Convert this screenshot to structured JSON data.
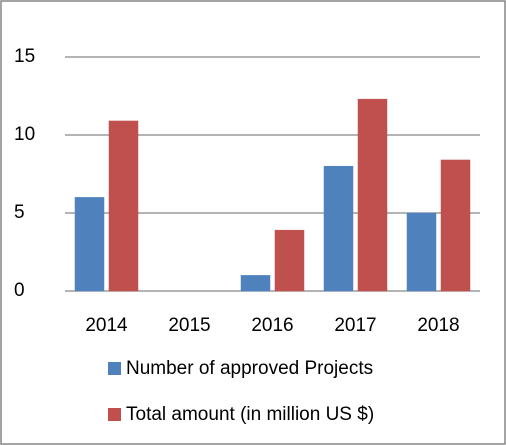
{
  "chart_data": {
    "type": "bar",
    "categories": [
      "2014",
      "2015",
      "2016",
      "2017",
      "2018"
    ],
    "series": [
      {
        "name": "Number of approved Projects",
        "color": "#4f81bd",
        "values": [
          6,
          0,
          1,
          8,
          5
        ]
      },
      {
        "name": "Total amount (in million US $)",
        "color": "#c0504d",
        "values": [
          10.9,
          0,
          3.9,
          12.3,
          8.4
        ]
      }
    ],
    "ylim": [
      0,
      15
    ],
    "yticks": [
      0,
      5,
      10,
      15
    ],
    "grid": true,
    "legend": "bottom"
  }
}
